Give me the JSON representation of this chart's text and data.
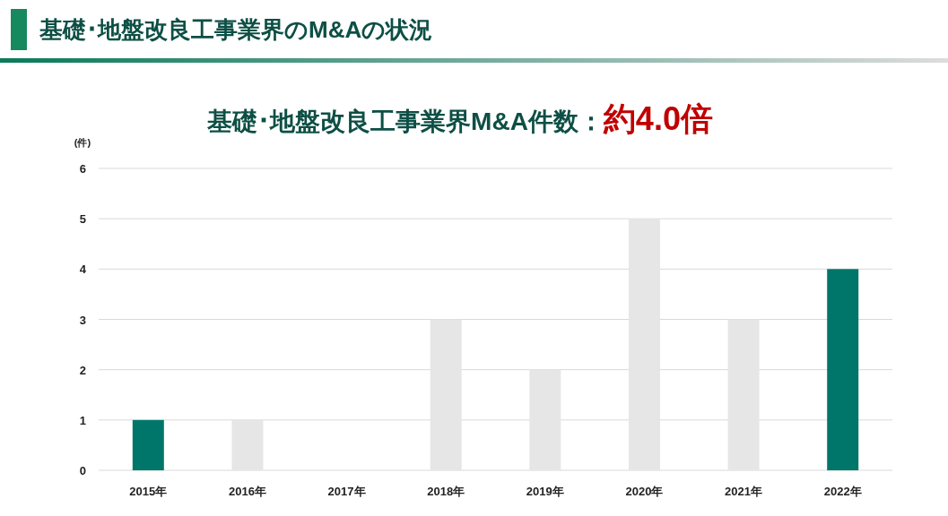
{
  "chart_data": {
    "type": "bar",
    "title": "基礎･地盤改良工事業界のM&Aの状況",
    "subtitle": "基礎･地盤改良工事業界M&A件数：",
    "annotations": [
      "約4.0倍"
    ],
    "ylabel": "(件)",
    "categories": [
      "2015年",
      "2016年",
      "2017年",
      "2018年",
      "2019年",
      "2020年",
      "2021年",
      "2022年"
    ],
    "values": [
      1,
      1,
      0,
      3,
      2,
      5,
      3,
      4
    ],
    "colors": [
      "#00766a",
      "#e6e6e6",
      "#e6e6e6",
      "#e6e6e6",
      "#e6e6e6",
      "#e6e6e6",
      "#e6e6e6",
      "#00766a"
    ],
    "ylim": [
      0,
      6
    ],
    "yticks": [
      0,
      1,
      2,
      3,
      4,
      5,
      6
    ],
    "grid": "y"
  }
}
